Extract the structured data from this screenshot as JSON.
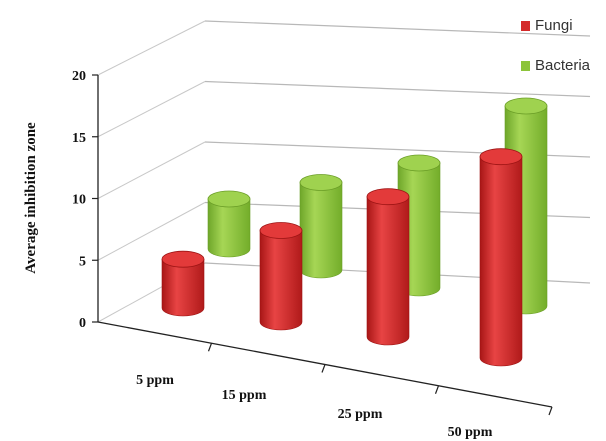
{
  "chart_data": {
    "type": "bar",
    "style": "3d-cylinder",
    "title": "",
    "xlabel": "",
    "ylabel": "Average inhibition zone",
    "categories": [
      "5 ppm",
      "15 ppm",
      "25 ppm",
      "50 ppm"
    ],
    "series": [
      {
        "name": "Fungi",
        "color": "#d42a2a",
        "values": [
          4,
          7.5,
          11.5,
          16.5
        ]
      },
      {
        "name": "Bacteria",
        "color": "#8cc43a",
        "values": [
          4,
          7,
          10,
          16
        ]
      }
    ],
    "ylim": [
      0,
      20
    ],
    "yticks": [
      0,
      5,
      10,
      15,
      20
    ],
    "grid": true,
    "legend_position": "top-right"
  }
}
